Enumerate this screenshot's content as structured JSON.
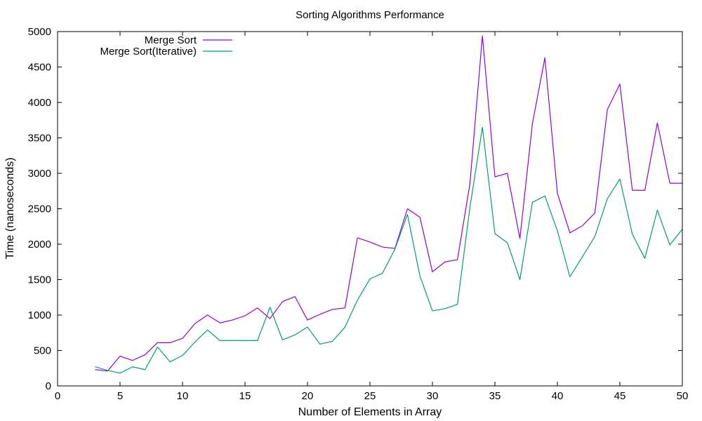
{
  "chart_data": {
    "type": "line",
    "title": "Sorting Algorithms Performance",
    "xlabel": "Number of Elements in Array",
    "ylabel": "Time (nanoseconds)",
    "xlim": [
      0,
      50
    ],
    "ylim": [
      0,
      5000
    ],
    "xticks": [
      0,
      5,
      10,
      15,
      20,
      25,
      30,
      35,
      40,
      45,
      50
    ],
    "yticks": [
      0,
      500,
      1000,
      1500,
      2000,
      2500,
      3000,
      3500,
      4000,
      4500,
      5000
    ],
    "grid": false,
    "legend_position": "top-left",
    "x": [
      3,
      4,
      5,
      6,
      7,
      8,
      9,
      10,
      11,
      12,
      13,
      14,
      15,
      16,
      17,
      18,
      19,
      20,
      21,
      22,
      23,
      24,
      25,
      26,
      27,
      28,
      29,
      30,
      31,
      32,
      33,
      34,
      35,
      36,
      37,
      38,
      39,
      40,
      41,
      42,
      43,
      44,
      45,
      46,
      47,
      48,
      49,
      50
    ],
    "series": [
      {
        "name": "Merge Sort",
        "color": "#9400d3",
        "values": [
          230,
          210,
          420,
          360,
          440,
          610,
          610,
          670,
          880,
          1000,
          890,
          930,
          990,
          1100,
          950,
          1190,
          1260,
          930,
          1010,
          1080,
          1100,
          2090,
          2030,
          1960,
          1940,
          2500,
          2380,
          1610,
          1750,
          1780,
          2850,
          4940,
          2950,
          3000,
          2080,
          3700,
          4630,
          2720,
          2160,
          2260,
          2440,
          3900,
          4260,
          2760,
          2760,
          3710,
          2860,
          2860
        ]
      },
      {
        "name": "Merge Sort(Iterative)",
        "color": "#009e73",
        "values": [
          270,
          220,
          180,
          270,
          230,
          550,
          340,
          430,
          620,
          790,
          640,
          640,
          640,
          640,
          1110,
          650,
          720,
          830,
          590,
          630,
          830,
          1210,
          1510,
          1590,
          1930,
          2420,
          1550,
          1060,
          1090,
          1150,
          2520,
          3650,
          2150,
          2020,
          1500,
          2590,
          2680,
          2190,
          1540,
          1820,
          2110,
          2640,
          2920,
          2140,
          1800,
          2480,
          1990,
          2210
        ]
      }
    ]
  }
}
